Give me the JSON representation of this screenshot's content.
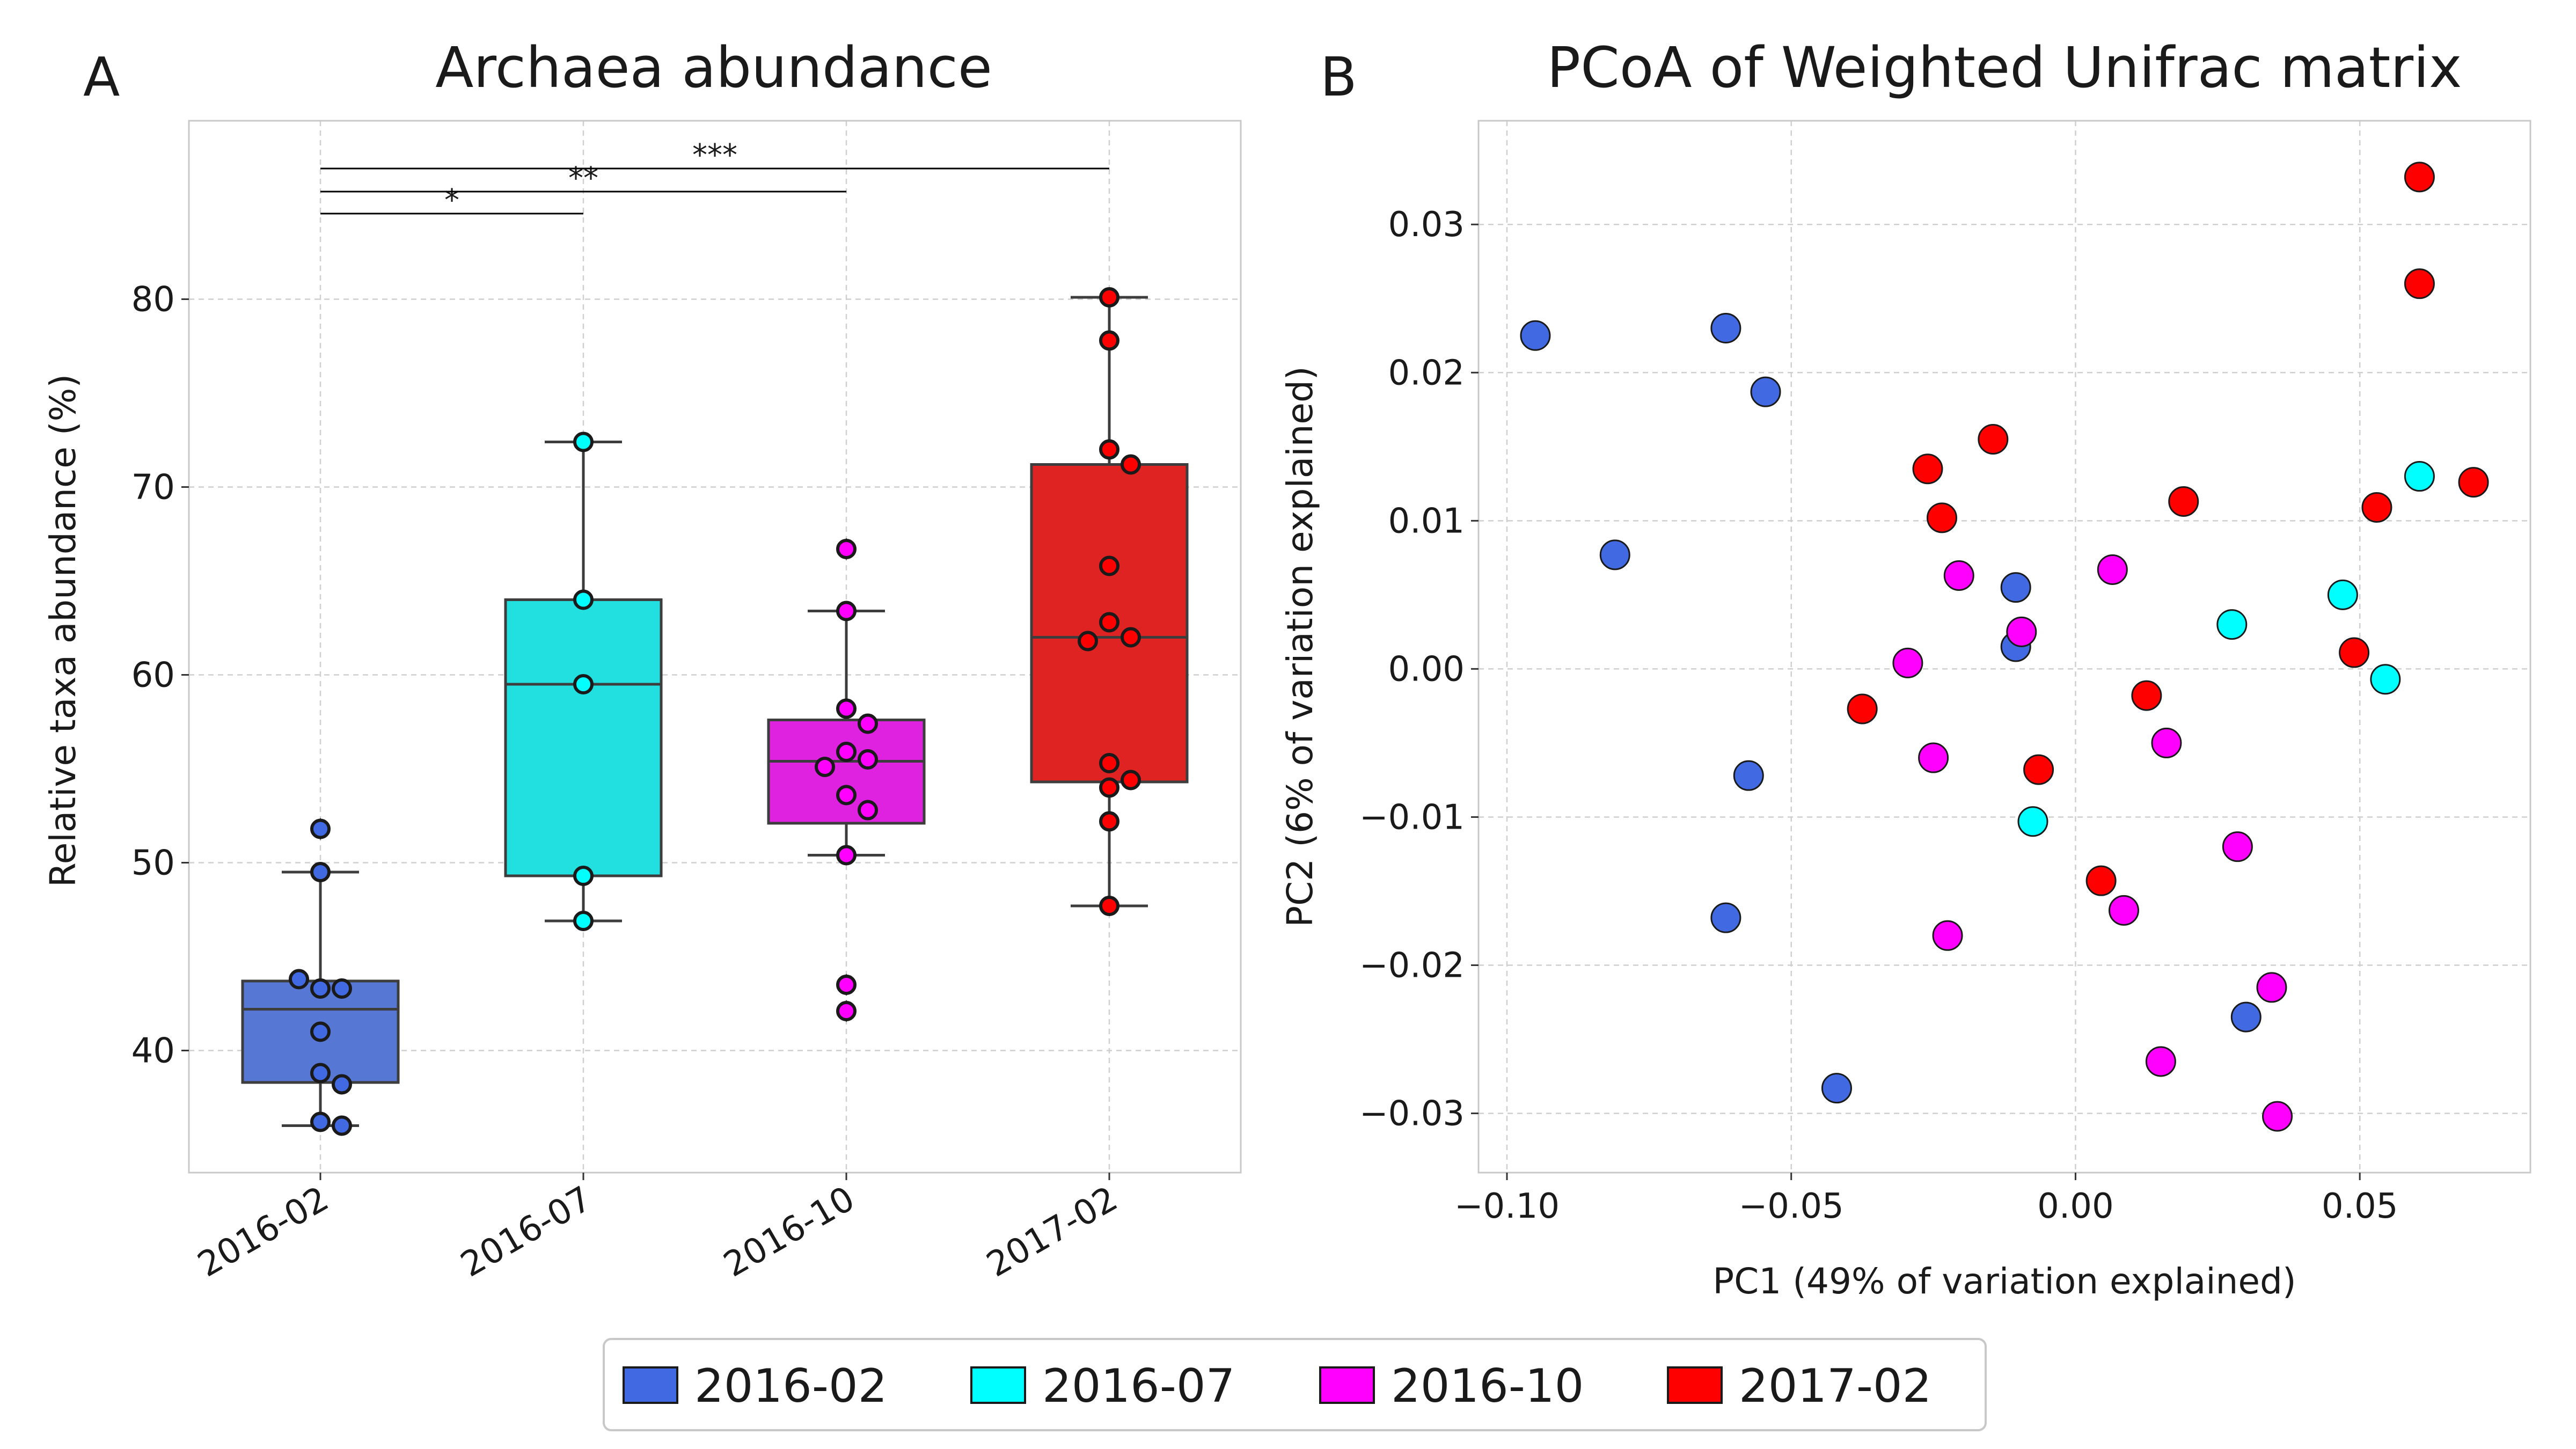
{
  "panelA": {
    "letter": "A",
    "title": "Archaea abundance",
    "ylabel": "Relative taxa abundance (%)",
    "yticks": [
      "40",
      "50",
      "60",
      "70",
      "80"
    ],
    "significance": [
      {
        "from": 0,
        "to": 1,
        "label": "*"
      },
      {
        "from": 0,
        "to": 2,
        "label": "**"
      },
      {
        "from": 0,
        "to": 3,
        "label": "***"
      }
    ]
  },
  "panelB": {
    "letter": "B",
    "title": "PCoA of Weighted Unifrac matrix",
    "xlabel": "PC1 (49% of variation explained)",
    "ylabel": "PC2 (6% of variation explained)",
    "xticks": [
      "−0.10",
      "−0.05",
      "0.00",
      "0.05"
    ],
    "yticks": [
      "0.03",
      "0.02",
      "0.01",
      "0.00",
      "−0.01",
      "−0.02",
      "−0.03"
    ]
  },
  "legend": {
    "items": [
      {
        "label": "2016-02",
        "color": "#4169e1"
      },
      {
        "label": "2016-07",
        "color": "#00ffff"
      },
      {
        "label": "2016-10",
        "color": "#ff00ff"
      },
      {
        "label": "2017-02",
        "color": "#ff0000"
      }
    ]
  },
  "chart_data": [
    {
      "type": "box",
      "title": "Archaea abundance",
      "xlabel": "",
      "ylabel": "Relative taxa abundance (%)",
      "ylim": [
        33.5,
        89.5
      ],
      "categories": [
        "2016-02",
        "2016-07",
        "2016-10",
        "2017-02"
      ],
      "box_colors": [
        "#5677d4",
        "#22e0e0",
        "#df22df",
        "#df2222"
      ],
      "point_colors": [
        "#4169e1",
        "#00ffff",
        "#ff00ff",
        "#ff0000"
      ],
      "boxes": [
        {
          "q1": 38.3,
          "median": 42.2,
          "q3": 43.7,
          "whisker_low": 36.0,
          "whisker_high": 49.5,
          "outliers": [
            51.8
          ]
        },
        {
          "q1": 49.3,
          "median": 59.5,
          "q3": 64.0,
          "whisker_low": 46.9,
          "whisker_high": 72.4,
          "outliers": []
        },
        {
          "q1": 52.1,
          "median": 55.4,
          "q3": 57.6,
          "whisker_low": 50.4,
          "whisker_high": 63.4,
          "outliers": [
            66.7,
            43.5,
            42.1
          ]
        },
        {
          "q1": 54.3,
          "median": 62.0,
          "q3": 71.2,
          "whisker_low": 47.7,
          "whisker_high": 80.1,
          "outliers": []
        }
      ],
      "points": [
        [
          51.8,
          49.5,
          43.3,
          43.3,
          43.8,
          41.0,
          38.8,
          38.2,
          36.2,
          36.0
        ],
        [
          72.4,
          64.0,
          59.5,
          49.3,
          46.9
        ],
        [
          66.7,
          63.4,
          58.2,
          57.4,
          55.9,
          55.5,
          55.1,
          53.6,
          52.8,
          50.4,
          43.5,
          42.1
        ],
        [
          80.1,
          77.8,
          72.0,
          71.2,
          65.8,
          62.8,
          62.0,
          61.8,
          55.3,
          54.4,
          54.0,
          52.2,
          47.7
        ]
      ]
    },
    {
      "type": "scatter",
      "title": "PCoA of Weighted Unifrac matrix",
      "xlabel": "PC1 (49% of variation explained)",
      "ylabel": "PC2 (6% of variation explained)",
      "xlim": [
        -0.105,
        0.08
      ],
      "ylim": [
        -0.034,
        0.037
      ],
      "series": [
        {
          "name": "2016-02",
          "color": "#4169e1",
          "points": [
            [
              -0.095,
              0.0225
            ],
            [
              -0.0615,
              0.023
            ],
            [
              -0.0545,
              0.0187
            ],
            [
              -0.081,
              0.0077
            ],
            [
              -0.0105,
              0.0055
            ],
            [
              -0.0105,
              0.0015
            ],
            [
              -0.0575,
              -0.0072
            ],
            [
              -0.0615,
              -0.0168
            ],
            [
              -0.042,
              -0.0283
            ],
            [
              0.03,
              -0.0235
            ]
          ]
        },
        {
          "name": "2016-07",
          "color": "#00ffff",
          "points": [
            [
              0.0605,
              0.013
            ],
            [
              0.047,
              0.005
            ],
            [
              0.0275,
              0.003
            ],
            [
              0.0545,
              -0.0007
            ],
            [
              -0.0075,
              -0.0103
            ]
          ]
        },
        {
          "name": "2016-10",
          "color": "#ff00ff",
          "points": [
            [
              -0.0205,
              0.0063
            ],
            [
              0.0065,
              0.0067
            ],
            [
              -0.0095,
              0.0025
            ],
            [
              -0.0295,
              0.0004
            ],
            [
              -0.025,
              -0.006
            ],
            [
              0.016,
              -0.005
            ],
            [
              0.0285,
              -0.012
            ],
            [
              0.0085,
              -0.0163
            ],
            [
              -0.0225,
              -0.018
            ],
            [
              0.0345,
              -0.0215
            ],
            [
              0.015,
              -0.0265
            ],
            [
              0.0355,
              -0.0302
            ]
          ]
        },
        {
          "name": "2017-02",
          "color": "#ff0000",
          "points": [
            [
              0.0605,
              0.0332
            ],
            [
              0.0605,
              0.026
            ],
            [
              -0.0145,
              0.0155
            ],
            [
              -0.026,
              0.0135
            ],
            [
              -0.0235,
              0.0102
            ],
            [
              0.019,
              0.0113
            ],
            [
              0.053,
              0.0109
            ],
            [
              0.07,
              0.0126
            ],
            [
              0.049,
              0.0011
            ],
            [
              -0.0375,
              -0.0027
            ],
            [
              0.0125,
              -0.0018
            ],
            [
              -0.0065,
              -0.0068
            ],
            [
              0.0045,
              -0.0143
            ]
          ]
        }
      ]
    }
  ]
}
